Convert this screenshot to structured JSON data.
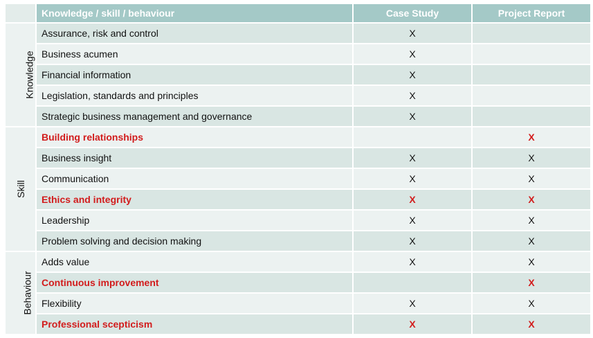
{
  "header": {
    "col_item": "Knowledge / skill / behaviour",
    "col_case_study": "Case Study",
    "col_project_report": "Project Report"
  },
  "colors": {
    "header_bg": "#a4c9c7",
    "row_dark": "#d9e6e3",
    "row_light": "#ecf2f1",
    "highlight": "#d21c1c"
  },
  "groups": [
    {
      "name": "Knowledge",
      "rows": [
        {
          "label": "Assurance, risk and control",
          "case_study": "X",
          "project_report": "",
          "highlight": false
        },
        {
          "label": "Business acumen",
          "case_study": "X",
          "project_report": "",
          "highlight": false
        },
        {
          "label": "Financial information",
          "case_study": "X",
          "project_report": "",
          "highlight": false
        },
        {
          "label": "Legislation, standards and principles",
          "case_study": "X",
          "project_report": "",
          "highlight": false
        },
        {
          "label": "Strategic business management and governance",
          "case_study": "X",
          "project_report": "",
          "highlight": false
        }
      ]
    },
    {
      "name": "Skill",
      "rows": [
        {
          "label": "Building relationships",
          "case_study": "",
          "project_report": "X",
          "highlight": true
        },
        {
          "label": "Business insight",
          "case_study": "X",
          "project_report": "X",
          "highlight": false
        },
        {
          "label": "Communication",
          "case_study": "X",
          "project_report": "X",
          "highlight": false
        },
        {
          "label": "Ethics and integrity",
          "case_study": "X",
          "project_report": "X",
          "highlight": true
        },
        {
          "label": "Leadership",
          "case_study": "X",
          "project_report": "X",
          "highlight": false
        },
        {
          "label": "Problem solving and decision making",
          "case_study": "X",
          "project_report": "X",
          "highlight": false
        }
      ]
    },
    {
      "name": "Behaviour",
      "rows": [
        {
          "label": "Adds value",
          "case_study": "X",
          "project_report": "X",
          "highlight": false
        },
        {
          "label": "Continuous improvement",
          "case_study": "",
          "project_report": "X",
          "highlight": true
        },
        {
          "label": "Flexibility",
          "case_study": "X",
          "project_report": "X",
          "highlight": false
        },
        {
          "label": "Professional scepticism",
          "case_study": "X",
          "project_report": "X",
          "highlight": true
        }
      ]
    }
  ]
}
